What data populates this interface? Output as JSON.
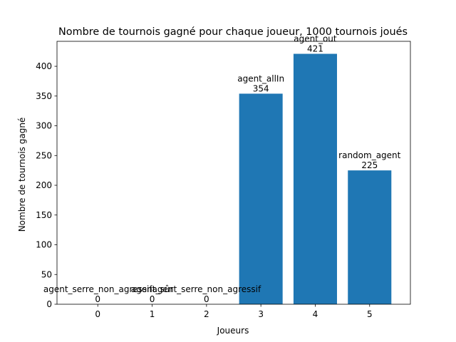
{
  "chart_data": {
    "type": "bar",
    "title": "Nombre de tournois gagné pour chaque joueur, 1000 tournois joués",
    "xlabel": "Joueurs",
    "ylabel": "Nombre de tournois gagné",
    "categories": [
      "0",
      "1",
      "2",
      "3",
      "4",
      "5"
    ],
    "x": [
      0,
      1,
      2,
      3,
      4,
      5
    ],
    "values": [
      0,
      0,
      0,
      354,
      421,
      225
    ],
    "bar_labels": [
      "agent_serre_non_agressif",
      "agent_sûr",
      "agent_serre_non_agressif",
      "agent_allIn",
      "agent_out",
      "random_agent"
    ],
    "value_labels": [
      "0",
      "0",
      "0",
      "354",
      "421",
      "225"
    ],
    "xlim": [
      -0.75,
      5.75
    ],
    "ylim": [
      0,
      442
    ],
    "yticks": [
      0,
      50,
      100,
      150,
      200,
      250,
      300,
      350,
      400
    ],
    "ytick_labels": [
      "0",
      "50",
      "100",
      "150",
      "200",
      "250",
      "300",
      "350",
      "400"
    ],
    "grid": false,
    "bar_color": "#1f77b4"
  }
}
